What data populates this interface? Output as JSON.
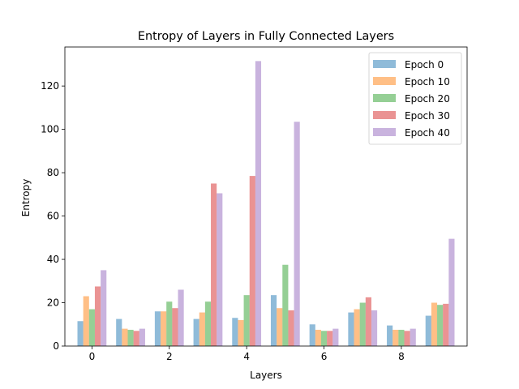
{
  "chart_data": {
    "type": "bar",
    "title": "Entropy of Layers in Fully Connected Layers",
    "xlabel": "Layers",
    "ylabel": "Entropy",
    "categories": [
      0,
      1,
      2,
      3,
      4,
      5,
      6,
      7,
      8,
      9
    ],
    "xticks": [
      0,
      2,
      4,
      6,
      8
    ],
    "yticks": [
      0,
      20,
      40,
      60,
      80,
      100,
      120
    ],
    "xlim": [
      -0.7,
      9.7
    ],
    "ylim": [
      0,
      138
    ],
    "grid": false,
    "legend_position": "top-right",
    "series": [
      {
        "name": "Epoch 0",
        "color": "#1f77b4",
        "values": [
          11.5,
          12.5,
          16.0,
          12.5,
          13.0,
          23.5,
          10.0,
          15.5,
          9.5,
          14.0
        ]
      },
      {
        "name": "Epoch 10",
        "color": "#ff7f0e",
        "values": [
          23.0,
          8.0,
          16.0,
          15.5,
          12.0,
          17.5,
          7.5,
          17.0,
          7.5,
          20.0
        ]
      },
      {
        "name": "Epoch 20",
        "color": "#2ca02c",
        "values": [
          17.0,
          7.5,
          20.5,
          20.5,
          23.5,
          37.5,
          7.0,
          20.0,
          7.5,
          19.0
        ]
      },
      {
        "name": "Epoch 30",
        "color": "#d62728",
        "values": [
          27.5,
          7.0,
          17.5,
          75.0,
          78.5,
          16.5,
          7.0,
          22.5,
          7.0,
          19.5
        ]
      },
      {
        "name": "Epoch 40",
        "color": "#9467bd",
        "values": [
          35.0,
          8.0,
          26.0,
          70.5,
          131.5,
          103.5,
          8.0,
          16.5,
          8.0,
          49.5
        ]
      }
    ]
  }
}
